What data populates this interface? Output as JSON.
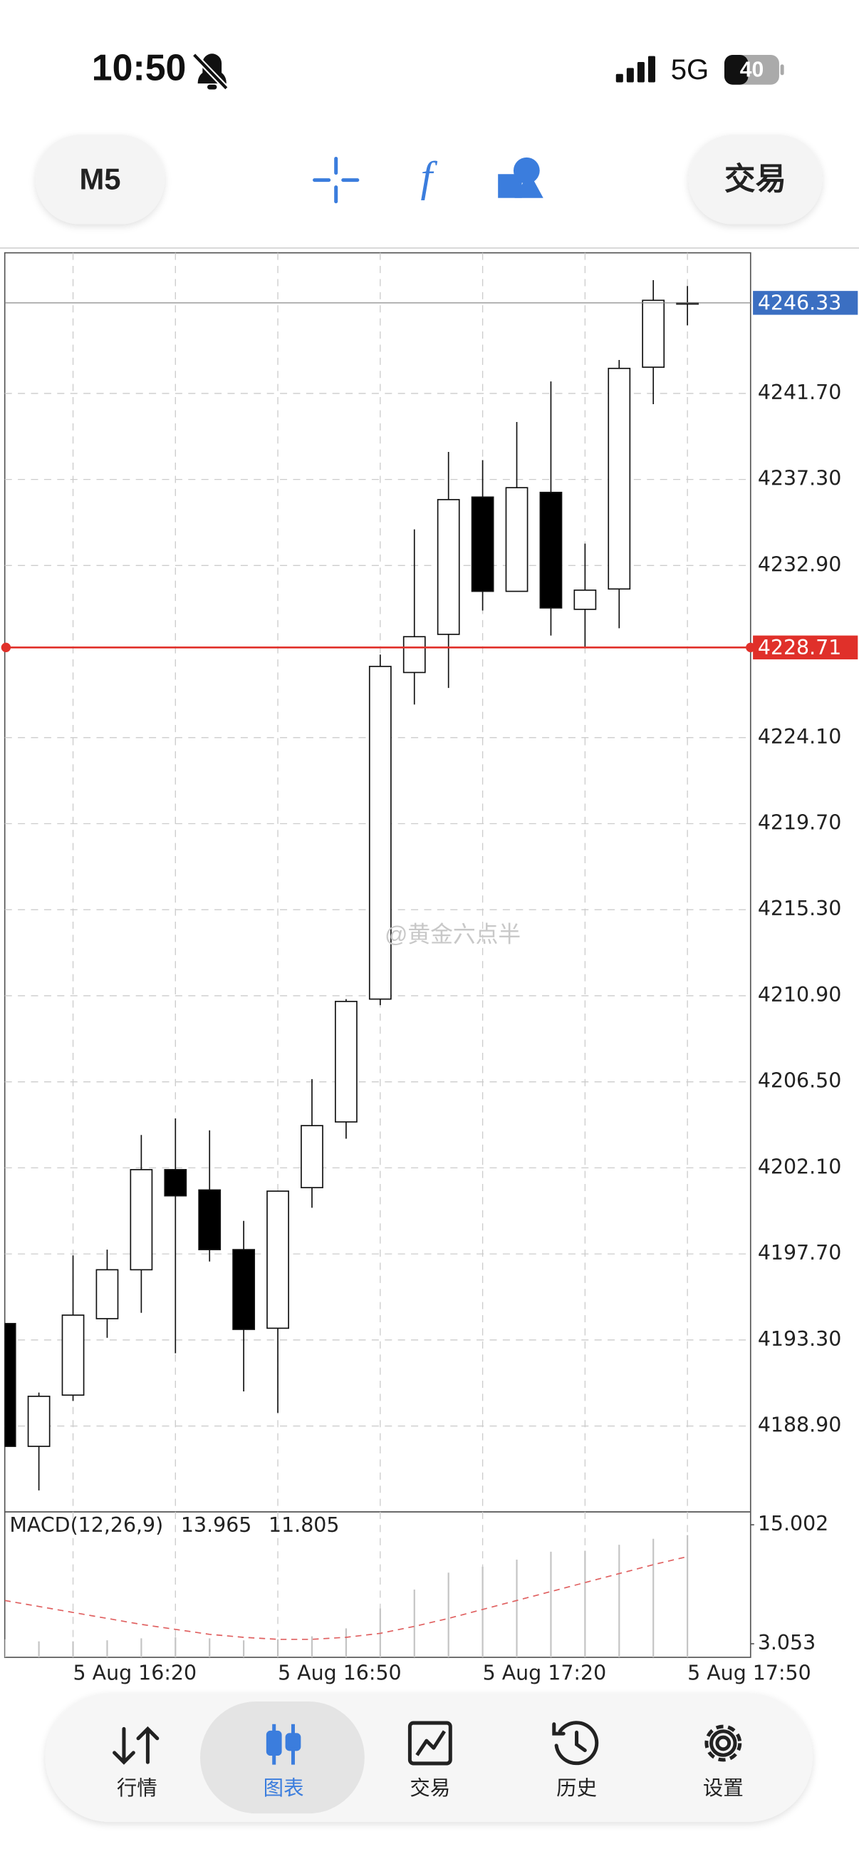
{
  "status_bar": {
    "time": "10:50",
    "network": "5G",
    "battery": "40"
  },
  "toolbar": {
    "timeframe": "M5",
    "trade": "交易"
  },
  "watermark": "@黄金六点半",
  "chart_data": [
    {
      "type": "candlestick",
      "categories": [
        null,
        null,
        "5 Aug 16:20",
        null,
        null,
        null,
        null,
        null,
        "5 Aug 16:50",
        null,
        null,
        null,
        null,
        null,
        "5 Aug 17:20",
        null,
        null,
        null,
        null,
        null,
        "5 Aug 17:50"
      ],
      "open": [
        4194.14,
        4187.86,
        4190.48,
        4194.39,
        4196.89,
        4202.01,
        4200.97,
        4197.92,
        4193.9,
        4201.09,
        4204.45,
        4210.73,
        4227.43,
        4229.38,
        4236.4,
        4231.58,
        4236.64,
        4230.66,
        4231.7,
        4243.04,
        4246.33
      ],
      "high": [
        4194.14,
        4190.61,
        4197.62,
        4197.92,
        4203.78,
        4204.63,
        4204.02,
        4199.39,
        4200.91,
        4206.64,
        4210.73,
        4228.35,
        4234.75,
        4238.71,
        4238.29,
        4240.24,
        4242.31,
        4234.02,
        4243.41,
        4247.49,
        4247.19
      ],
      "low": [
        4187.86,
        4185.61,
        4190.18,
        4193.41,
        4194.69,
        4192.62,
        4197.31,
        4190.67,
        4189.57,
        4200.06,
        4203.59,
        4210.42,
        4225.79,
        4226.64,
        4230.6,
        4231.58,
        4229.32,
        4228.71,
        4229.69,
        4241.15,
        4245.18
      ],
      "close": [
        4187.86,
        4190.42,
        4194.57,
        4196.89,
        4202.01,
        4200.67,
        4197.92,
        4193.84,
        4200.91,
        4204.26,
        4210.61,
        4227.74,
        4229.26,
        4236.27,
        4231.58,
        4236.88,
        4230.73,
        4231.64,
        4242.98,
        4246.46,
        4246.33
      ],
      "ylim": [
        4184.51,
        4248.89
      ],
      "yticks": [
        {
          "value": 4188.9,
          "label": "4188.90"
        },
        {
          "value": 4193.3,
          "label": "4193.30"
        },
        {
          "value": 4197.7,
          "label": "4197.70"
        },
        {
          "value": 4202.1,
          "label": "4202.10"
        },
        {
          "value": 4206.5,
          "label": "4206.50"
        },
        {
          "value": 4210.9,
          "label": "4210.90"
        },
        {
          "value": 4215.3,
          "label": "4215.30"
        },
        {
          "value": 4219.7,
          "label": "4219.70"
        },
        {
          "value": 4224.1,
          "label": "4224.10"
        },
        {
          "value": 4232.9,
          "label": "4232.90"
        },
        {
          "value": 4237.3,
          "label": "4237.30"
        },
        {
          "value": 4241.7,
          "label": "4241.70"
        }
      ],
      "price_lines": [
        {
          "value": 4246.33,
          "color": "#3b6fc2"
        },
        {
          "value": 4228.71,
          "color": "#e0302a"
        }
      ],
      "grid": true
    },
    {
      "type": "macd",
      "title": "MACD(12,26,9)",
      "series": [
        {
          "type": "bar",
          "color": "#c4c4c4",
          "values": [
            3.5,
            3.3,
            3.3,
            3.4,
            3.6,
            3.7,
            3.6,
            3.4,
            3.5,
            3.8,
            4.6,
            6.6,
            8.5,
            10.2,
            10.8,
            11.5,
            12.3,
            12.4,
            13.0,
            13.6,
            13.965
          ]
        },
        {
          "type": "line",
          "dashed": true,
          "color": "#e06060",
          "values": [
            7.4,
            6.8,
            6.2,
            5.6,
            5.0,
            4.5,
            4.0,
            3.7,
            3.5,
            3.5,
            3.7,
            4.1,
            4.8,
            5.6,
            6.5,
            7.4,
            8.3,
            9.2,
            10.1,
            11.0,
            11.805
          ]
        }
      ],
      "ylim": [
        1.69,
        16.3
      ],
      "yticks": [
        15.002,
        3.053
      ]
    }
  ],
  "nav": {
    "items": [
      "行情",
      "图表",
      "交易",
      "历史",
      "设置"
    ],
    "active": 1
  }
}
